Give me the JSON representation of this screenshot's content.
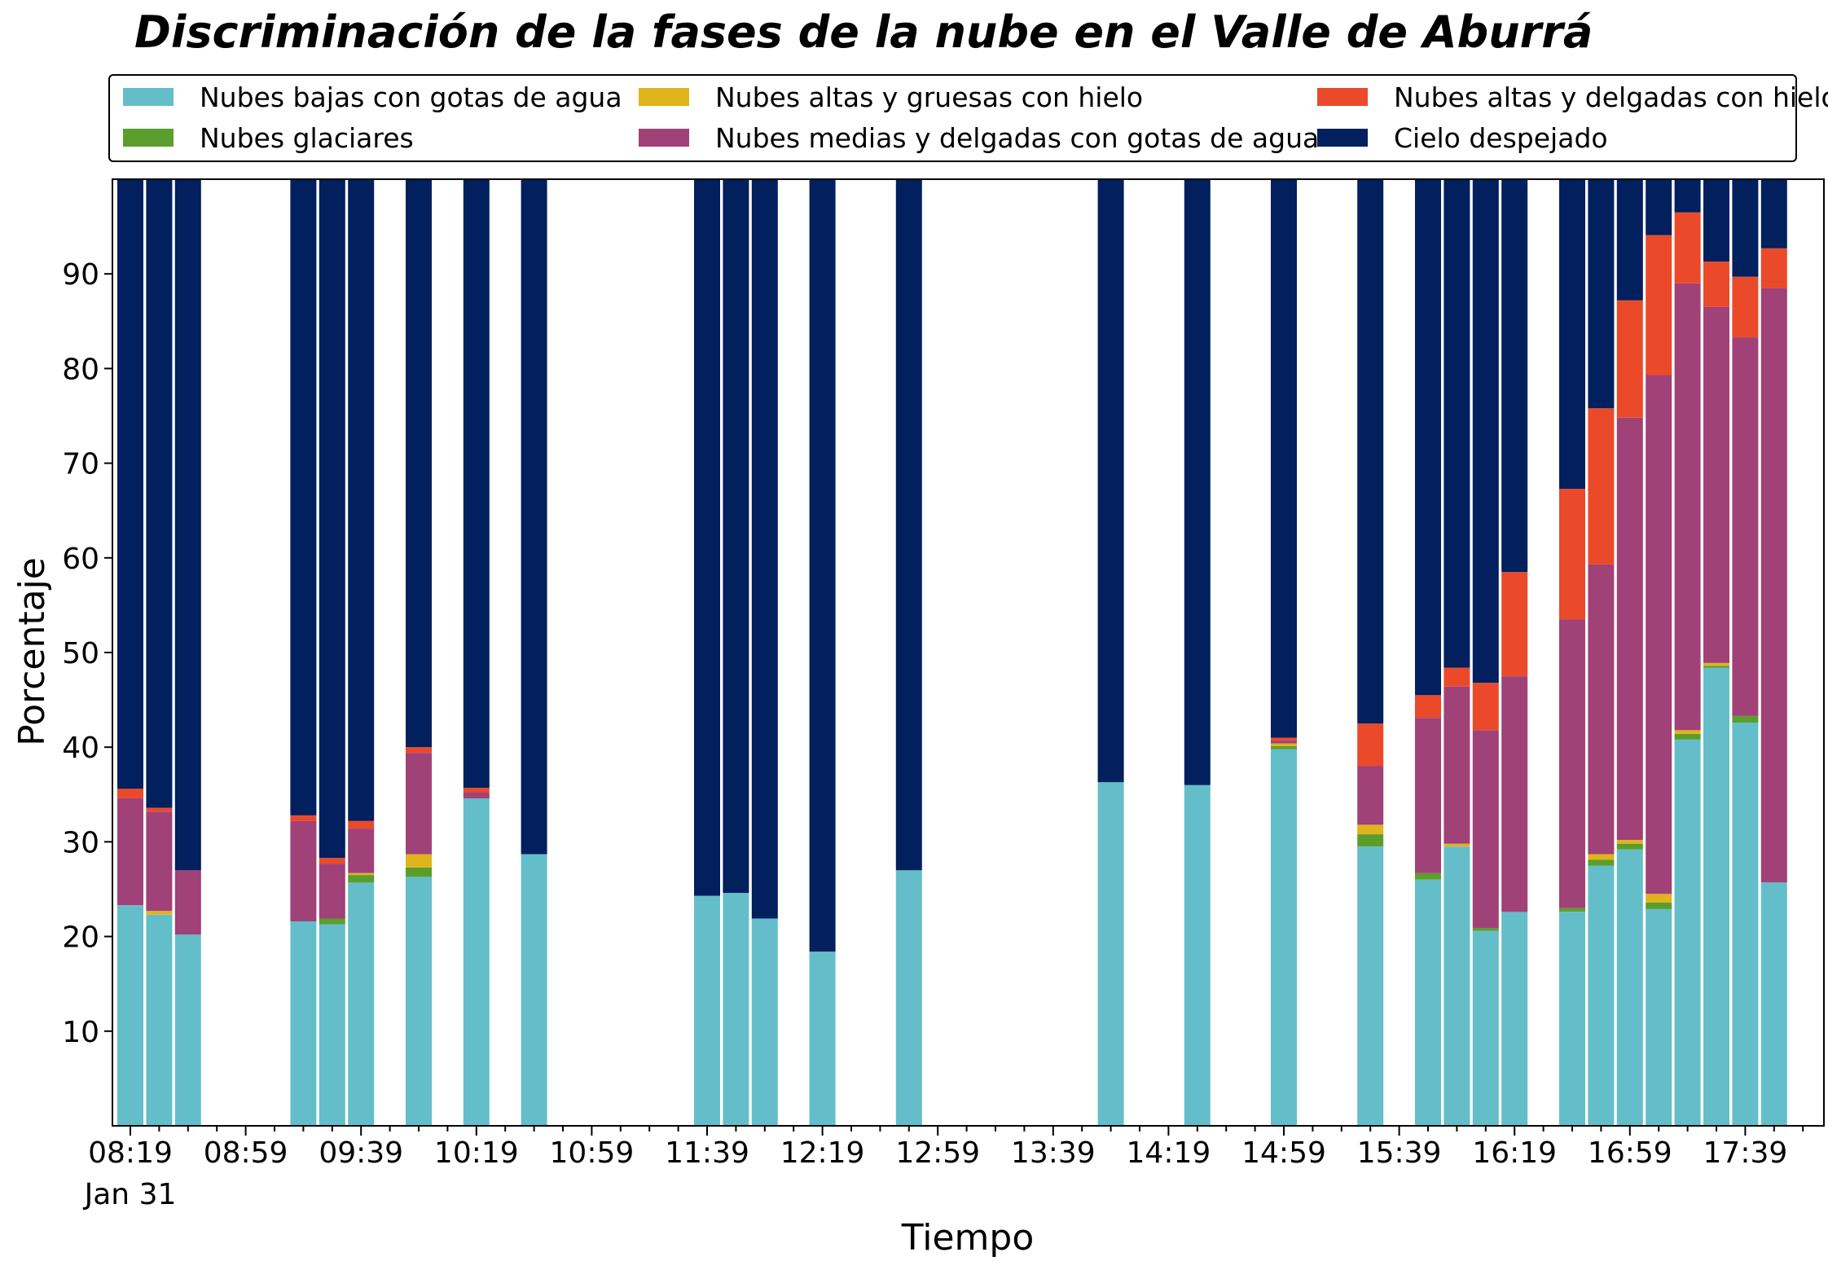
{
  "chart_data": {
    "type": "bar",
    "stacked": true,
    "title": "Discriminación de la fases de la nube en el Valle de Aburrá",
    "xlabel": "Tiempo",
    "ylabel": "Porcentaje",
    "ylim": [
      0,
      100
    ],
    "yticks": [
      10,
      20,
      30,
      40,
      50,
      60,
      70,
      80,
      90
    ],
    "xtick_labels": [
      "08:19",
      "08:59",
      "09:39",
      "10:19",
      "10:59",
      "11:39",
      "12:19",
      "12:59",
      "13:39",
      "14:19",
      "14:59",
      "15:39",
      "16:19",
      "16:59",
      "17:39"
    ],
    "xtick_date_label": "Jan 31",
    "x_unit": "minutes after 08:19 on Jan 31",
    "grid": false,
    "legend_position": "top, above plot, 3 columns",
    "x": [
      0,
      10,
      20,
      60,
      70,
      80,
      100,
      120,
      140,
      200,
      210,
      220,
      240,
      270,
      340,
      370,
      400,
      430,
      450,
      460,
      470,
      480,
      500,
      510,
      520,
      530,
      540,
      550,
      560,
      570
    ],
    "series": [
      {
        "name": "Nubes bajas con gotas de agua",
        "color": "#64bec9",
        "values": [
          23.3,
          22.3,
          20.2,
          21.6,
          21.3,
          25.7,
          26.3,
          34.6,
          28.7,
          24.3,
          24.6,
          21.9,
          18.4,
          27.0,
          36.3,
          36.0,
          39.8,
          29.5,
          26.0,
          29.5,
          20.6,
          22.6,
          22.6,
          27.5,
          29.2,
          22.9,
          40.8,
          48.4,
          42.6,
          25.7
        ]
      },
      {
        "name": "Nubes glaciares",
        "color": "#5b9e2d",
        "values": [
          0,
          0,
          0,
          0,
          0.6,
          0.8,
          1.0,
          0,
          0,
          0,
          0,
          0,
          0,
          0,
          0,
          0,
          0.3,
          1.3,
          0.7,
          0,
          0.3,
          0,
          0.4,
          0.6,
          0.6,
          0.7,
          0.6,
          0.2,
          0.7,
          0
        ]
      },
      {
        "name": "Nubes altas y gruesas con hielo",
        "color": "#e0b41c",
        "values": [
          0,
          0.4,
          0,
          0,
          0,
          0.2,
          1.4,
          0,
          0,
          0,
          0,
          0,
          0,
          0,
          0,
          0,
          0.3,
          1.0,
          0,
          0.3,
          0,
          0,
          0,
          0.6,
          0.4,
          0.9,
          0.4,
          0.3,
          0,
          0
        ]
      },
      {
        "name": "Nubes medias y delgadas con gotas de agua",
        "color": "#a04178",
        "values": [
          11.3,
          10.5,
          6.8,
          10.6,
          5.8,
          4.7,
          10.7,
          0.6,
          0,
          0,
          0,
          0,
          0,
          0,
          0,
          0,
          0.3,
          6.2,
          16.4,
          16.6,
          20.9,
          24.9,
          30.5,
          30.6,
          44.6,
          54.8,
          47.2,
          37.6,
          40.0,
          62.8
        ]
      },
      {
        "name": "Nubes altas y delgadas con hielo",
        "color": "#ea4a2a",
        "values": [
          1.0,
          0.4,
          0,
          0.6,
          0.6,
          0.8,
          0.6,
          0.5,
          0,
          0,
          0,
          0,
          0,
          0,
          0,
          0,
          0.3,
          4.5,
          2.4,
          2.0,
          5.0,
          11.0,
          13.8,
          16.5,
          12.4,
          14.8,
          7.5,
          4.8,
          6.4,
          4.2
        ]
      },
      {
        "name": "Cielo despejado",
        "color": "#021f5e",
        "values": [
          64.4,
          66.4,
          73.0,
          67.2,
          71.7,
          67.8,
          60.0,
          64.3,
          71.3,
          75.7,
          75.4,
          78.1,
          81.6,
          73.0,
          63.7,
          64.0,
          59.0,
          57.5,
          54.5,
          51.6,
          53.2,
          41.5,
          32.7,
          24.2,
          12.8,
          5.9,
          3.5,
          8.7,
          10.3,
          7.3
        ]
      }
    ]
  }
}
